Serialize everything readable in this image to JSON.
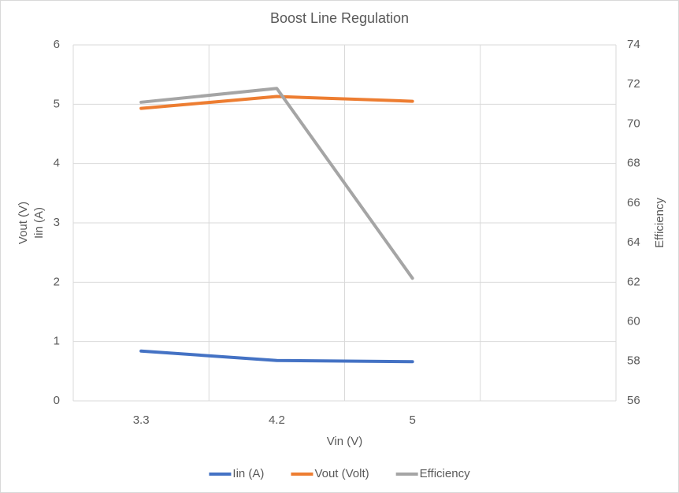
{
  "chart_data": {
    "type": "line",
    "title": "Boost Line Regulation",
    "categories": [
      "3.3",
      "4.2",
      "5",
      null
    ],
    "series": [
      {
        "name": "Iin (A)",
        "color": "#4472c4",
        "values": [
          0.84,
          0.68,
          0.66,
          null
        ]
      },
      {
        "name": "Vout (Volt)",
        "color": "#ed7d31",
        "values": [
          4.93,
          5.13,
          5.05,
          null
        ]
      },
      {
        "name": "Efficiency",
        "color": "#a5a5a5",
        "axis": "y2",
        "values": [
          71.1,
          71.8,
          62.2,
          null
        ]
      }
    ],
    "xlabel": "Vin (V)",
    "ylabel": [
      "Vout (V)",
      "Iin (A)"
    ],
    "y2label": "Efficiency",
    "ylim": [
      0,
      6
    ],
    "yticks": [
      0,
      1,
      2,
      3,
      4,
      5,
      6
    ],
    "y2lim": [
      56,
      74
    ],
    "y2ticks": [
      56,
      58,
      60,
      62,
      64,
      66,
      68,
      70,
      72,
      74
    ],
    "grid": true,
    "legend": "bottom"
  }
}
